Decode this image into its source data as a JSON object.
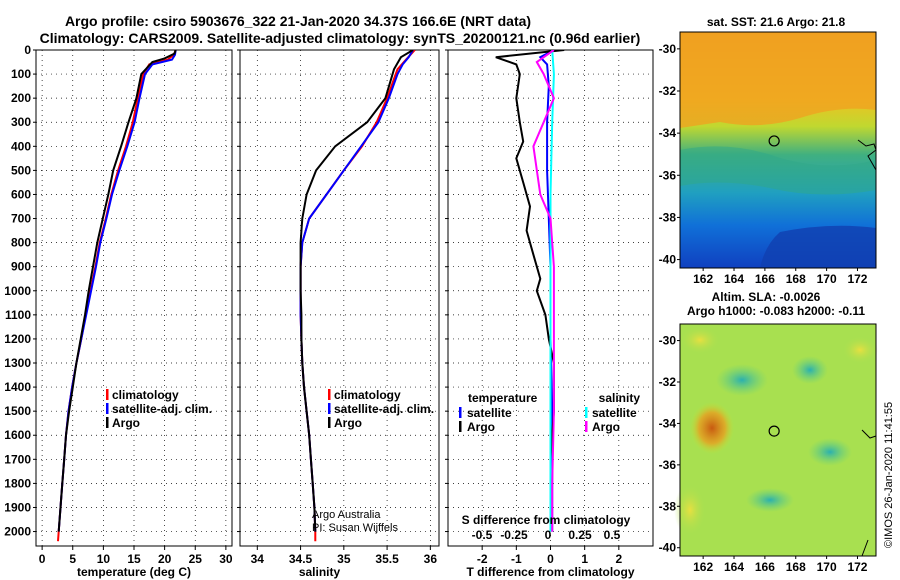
{
  "title": {
    "line1": "Argo profile: csiro 5903676_322 21-Jan-2020 34.37S 166.6E (NRT data)",
    "line2": "Climatology: CARS2009. Satellite-adjusted climatology: synTS_20200121.nc (0.96d earlier)"
  },
  "credit": {
    "line1": "Argo Australia",
    "line2": "PI: Susan Wijffels"
  },
  "timestamp": "©IMOS 26-Jan-2020 11:41:55",
  "colors": {
    "climatology": "#ff0000",
    "satellite": "#0000ff",
    "argo": "#000000",
    "sat_salinity": "#00ffff",
    "argo_salinity": "#ff00ff"
  },
  "chart_data": [
    {
      "type": "line",
      "xlabel": "temperature (deg C)",
      "xlim": [
        -1,
        31
      ],
      "ylim": [
        2060,
        0
      ],
      "xticks": [
        0,
        5,
        10,
        15,
        20,
        25,
        30
      ],
      "yticks": [
        0,
        100,
        200,
        300,
        400,
        500,
        600,
        700,
        800,
        900,
        1000,
        1100,
        1200,
        1300,
        1400,
        1500,
        1600,
        1700,
        1800,
        1900,
        2000
      ],
      "legend": [
        "climatology",
        "satellite-adj. clim.",
        "Argo"
      ],
      "series": [
        {
          "name": "climatology",
          "color": "#ff0000",
          "points": [
            [
              21.8,
              0
            ],
            [
              21.5,
              20
            ],
            [
              20.5,
              40
            ],
            [
              17.5,
              60
            ],
            [
              16.5,
              100
            ],
            [
              15.6,
              200
            ],
            [
              14.8,
              300
            ],
            [
              13.7,
              400
            ],
            [
              12.4,
              500
            ],
            [
              11.3,
              600
            ],
            [
              10.4,
              700
            ],
            [
              9.4,
              800
            ],
            [
              8.7,
              900
            ],
            [
              7.9,
              1000
            ],
            [
              7.1,
              1100
            ],
            [
              6.4,
              1200
            ],
            [
              5.6,
              1300
            ],
            [
              4.9,
              1400
            ],
            [
              4.3,
              1500
            ],
            [
              3.9,
              1600
            ],
            [
              3.6,
              1700
            ],
            [
              3.3,
              1800
            ],
            [
              3.0,
              1900
            ],
            [
              2.7,
              2000
            ],
            [
              2.6,
              2040
            ]
          ]
        },
        {
          "name": "satellite-adj. clim.",
          "color": "#0000ff",
          "points": [
            [
              21.8,
              0
            ],
            [
              21.7,
              20
            ],
            [
              21.2,
              40
            ],
            [
              18.0,
              60
            ],
            [
              16.8,
              100
            ],
            [
              15.9,
              200
            ],
            [
              15.1,
              300
            ],
            [
              13.9,
              400
            ],
            [
              12.6,
              500
            ],
            [
              11.4,
              600
            ],
            [
              10.5,
              700
            ],
            [
              9.5,
              800
            ],
            [
              8.8,
              900
            ],
            [
              8.0,
              1000
            ],
            [
              7.2,
              1100
            ],
            [
              6.4,
              1200
            ],
            [
              5.6,
              1300
            ],
            [
              4.9,
              1400
            ],
            [
              4.3,
              1500
            ],
            [
              3.9,
              1600
            ],
            [
              3.6,
              1700
            ],
            [
              3.3,
              1800
            ],
            [
              3.0,
              1900
            ],
            [
              2.7,
              2000
            ]
          ]
        },
        {
          "name": "Argo",
          "color": "#000000",
          "points": [
            [
              21.8,
              0
            ],
            [
              21.6,
              15
            ],
            [
              20.0,
              35
            ],
            [
              18.0,
              50
            ],
            [
              16.2,
              100
            ],
            [
              15.4,
              200
            ],
            [
              14.1,
              300
            ],
            [
              12.9,
              400
            ],
            [
              11.6,
              500
            ],
            [
              10.8,
              600
            ],
            [
              9.9,
              700
            ],
            [
              9.0,
              800
            ],
            [
              8.3,
              900
            ],
            [
              7.6,
              1000
            ],
            [
              7.0,
              1100
            ],
            [
              6.3,
              1200
            ],
            [
              5.6,
              1300
            ],
            [
              5.0,
              1400
            ],
            [
              4.4,
              1500
            ],
            [
              3.9,
              1600
            ],
            [
              3.6,
              1700
            ],
            [
              3.3,
              1800
            ],
            [
              3.0,
              1900
            ],
            [
              2.7,
              2000
            ]
          ]
        }
      ]
    },
    {
      "type": "line",
      "xlabel": "salinity",
      "xlim": [
        33.8,
        36.1
      ],
      "ylim": [
        2060,
        0
      ],
      "xticks": [
        34,
        34.5,
        35,
        35.5,
        36
      ],
      "legend": [
        "climatology",
        "satellite-adj. clim.",
        "Argo"
      ],
      "series": [
        {
          "name": "climatology",
          "color": "#ff0000",
          "points": [
            [
              35.82,
              0
            ],
            [
              35.72,
              40
            ],
            [
              35.62,
              80
            ],
            [
              35.58,
              120
            ],
            [
              35.5,
              200
            ],
            [
              35.38,
              300
            ],
            [
              35.21,
              400
            ],
            [
              35.0,
              500
            ],
            [
              34.8,
              600
            ],
            [
              34.6,
              700
            ],
            [
              34.52,
              800
            ],
            [
              34.5,
              900
            ],
            [
              34.5,
              1000
            ],
            [
              34.5,
              1100
            ],
            [
              34.51,
              1200
            ],
            [
              34.52,
              1300
            ],
            [
              34.54,
              1400
            ],
            [
              34.57,
              1500
            ],
            [
              34.6,
              1600
            ],
            [
              34.62,
              1700
            ],
            [
              34.64,
              1800
            ],
            [
              34.66,
              1900
            ],
            [
              34.67,
              2000
            ],
            [
              34.67,
              2040
            ]
          ]
        },
        {
          "name": "satellite-adj. clim.",
          "color": "#0000ff",
          "points": [
            [
              35.8,
              0
            ],
            [
              35.75,
              30
            ],
            [
              35.68,
              60
            ],
            [
              35.62,
              100
            ],
            [
              35.52,
              200
            ],
            [
              35.4,
              300
            ],
            [
              35.2,
              400
            ],
            [
              35.0,
              500
            ],
            [
              34.8,
              600
            ],
            [
              34.6,
              700
            ],
            [
              34.52,
              800
            ],
            [
              34.5,
              900
            ],
            [
              34.5,
              1000
            ],
            [
              34.5,
              1100
            ],
            [
              34.51,
              1200
            ],
            [
              34.52,
              1300
            ],
            [
              34.54,
              1400
            ],
            [
              34.57,
              1500
            ],
            [
              34.6,
              1600
            ],
            [
              34.62,
              1700
            ],
            [
              34.64,
              1800
            ],
            [
              34.66,
              1900
            ],
            [
              34.67,
              2000
            ]
          ]
        },
        {
          "name": "Argo",
          "color": "#000000",
          "points": [
            [
              35.8,
              0
            ],
            [
              35.66,
              30
            ],
            [
              35.58,
              80
            ],
            [
              35.48,
              200
            ],
            [
              35.27,
              300
            ],
            [
              34.9,
              400
            ],
            [
              34.68,
              500
            ],
            [
              34.57,
              600
            ],
            [
              34.52,
              700
            ],
            [
              34.5,
              800
            ],
            [
              34.5,
              900
            ],
            [
              34.5,
              1000
            ],
            [
              34.51,
              1100
            ],
            [
              34.51,
              1200
            ],
            [
              34.52,
              1300
            ],
            [
              34.54,
              1400
            ],
            [
              34.57,
              1500
            ],
            [
              34.6,
              1600
            ],
            [
              34.62,
              1700
            ],
            [
              34.64,
              1800
            ],
            [
              34.66,
              1900
            ],
            [
              34.67,
              2000
            ]
          ]
        }
      ]
    },
    {
      "type": "line",
      "xlabel": "T difference from climatology",
      "toplabel": "S difference from climatology",
      "xlim": [
        -3,
        3
      ],
      "ylim": [
        2060,
        0
      ],
      "xticks": [
        -2,
        -1,
        0,
        1,
        2
      ],
      "top_ticks": [
        "-0.5",
        "-0.25",
        "0",
        "0.25",
        "0.5"
      ],
      "legend_left": {
        "title": "temperature",
        "items": [
          "satellite",
          "Argo"
        ]
      },
      "legend_right": {
        "title": "salinity",
        "items": [
          "satellite",
          "Argo"
        ]
      },
      "series": [
        {
          "name": "satellite",
          "color": "#0000ff",
          "points": [
            [
              0.1,
              0
            ],
            [
              -0.3,
              30
            ],
            [
              -0.1,
              60
            ],
            [
              -0.05,
              150
            ],
            [
              -0.1,
              300
            ],
            [
              -0.1,
              500
            ],
            [
              -0.05,
              700
            ],
            [
              0.0,
              900
            ],
            [
              0.0,
              1200
            ],
            [
              0.05,
              1500
            ],
            [
              0.05,
              2000
            ]
          ]
        },
        {
          "name": "Argo",
          "color": "#000000",
          "points": [
            [
              0.4,
              0
            ],
            [
              -1.6,
              30
            ],
            [
              -1.0,
              60
            ],
            [
              -0.9,
              100
            ],
            [
              -1.0,
              200
            ],
            [
              -0.9,
              300
            ],
            [
              -0.8,
              380
            ],
            [
              -1.0,
              450
            ],
            [
              -0.8,
              550
            ],
            [
              -0.6,
              650
            ],
            [
              -0.7,
              750
            ],
            [
              -0.5,
              850
            ],
            [
              -0.3,
              950
            ],
            [
              -0.4,
              1000
            ],
            [
              -0.15,
              1100
            ],
            [
              -0.05,
              1200
            ],
            [
              0.1,
              1300
            ],
            [
              0.1,
              1400
            ],
            [
              0.1,
              1500
            ],
            [
              0.05,
              1600
            ],
            [
              0.0,
              1700
            ],
            [
              0.0,
              2000
            ]
          ]
        },
        {
          "name": "sat-salinity",
          "color": "#00ffff",
          "points": [
            [
              0.05,
              0
            ],
            [
              0.1,
              100
            ],
            [
              0.05,
              300
            ],
            [
              0.0,
              600
            ],
            [
              0.0,
              1000
            ],
            [
              0.0,
              1500
            ],
            [
              0.0,
              2000
            ]
          ]
        },
        {
          "name": "argo-salinity",
          "color": "#ff00ff",
          "points": [
            [
              0.1,
              0
            ],
            [
              -0.4,
              50
            ],
            [
              -0.2,
              100
            ],
            [
              0.1,
              200
            ],
            [
              -0.5,
              400
            ],
            [
              -0.3,
              600
            ],
            [
              0.0,
              700
            ],
            [
              0.1,
              900
            ],
            [
              0.1,
              1200
            ],
            [
              0.1,
              1500
            ],
            [
              0.05,
              1800
            ],
            [
              0.05,
              2000
            ]
          ]
        }
      ]
    },
    {
      "type": "heatmap",
      "title": "sat. SST: 21.6 Argo: 21.8",
      "xlim": [
        160.5,
        173.2
      ],
      "ylim": [
        -40.4,
        -29.2
      ],
      "xticks": [
        162,
        164,
        166,
        168,
        170,
        172
      ],
      "yticks": [
        -30,
        -32,
        -34,
        -36,
        -38,
        -40
      ],
      "marker": {
        "lon": 166.6,
        "lat": -34.37
      }
    },
    {
      "type": "heatmap",
      "title_line1": "Altim. SLA: -0.0026",
      "title_line2": "Argo h1000: -0.083 h2000: -0.11",
      "xlim": [
        160.5,
        173.2
      ],
      "ylim": [
        -40.4,
        -29.2
      ],
      "xticks": [
        162,
        164,
        166,
        168,
        170,
        172
      ],
      "yticks": [
        -30,
        -32,
        -34,
        -36,
        -38,
        -40
      ],
      "marker": {
        "lon": 166.6,
        "lat": -34.37
      }
    }
  ]
}
